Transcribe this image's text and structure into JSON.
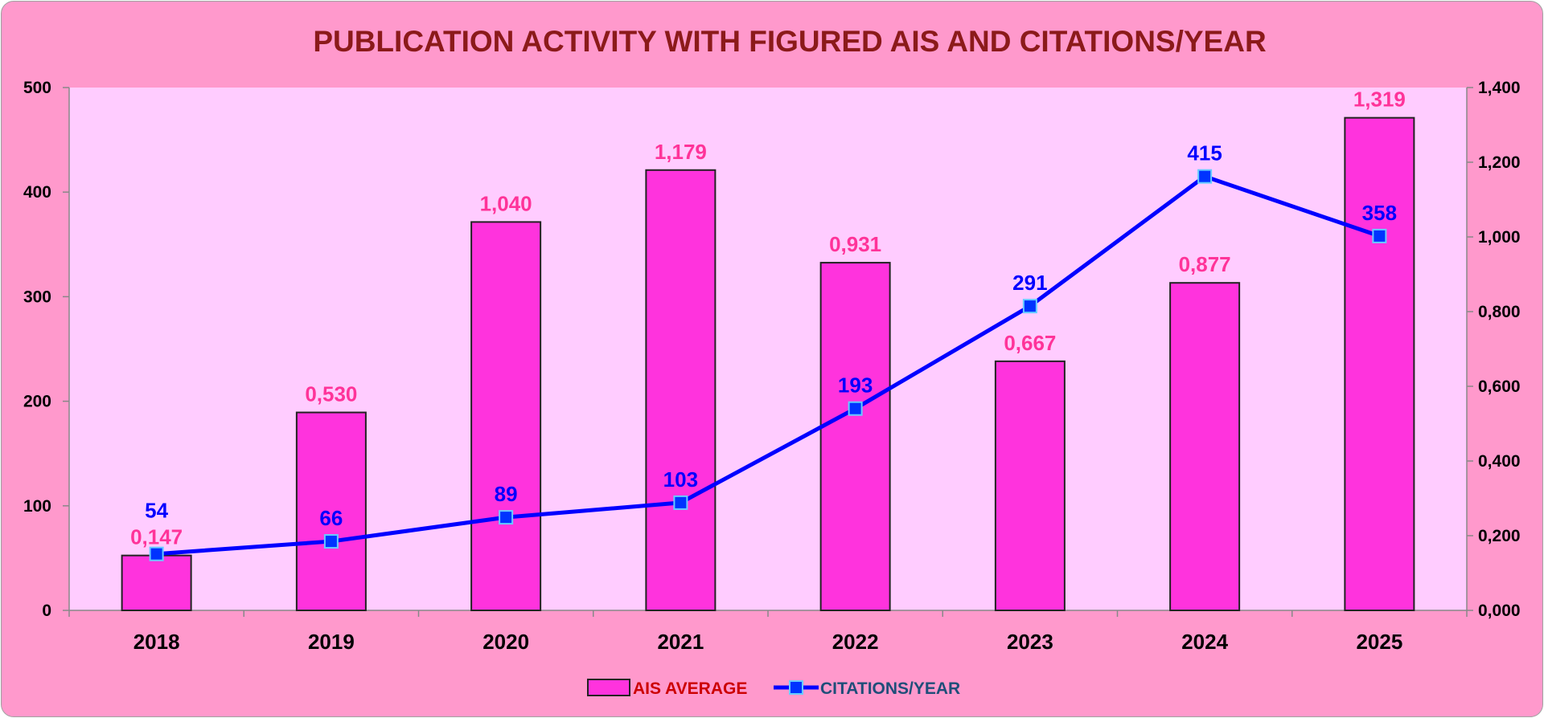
{
  "chart_data": {
    "type": "bar",
    "title": "PUBLICATION ACTIVITY WITH FIGURED AIS AND CITATIONS/YEAR",
    "categories": [
      "2018",
      "2019",
      "2020",
      "2021",
      "2022",
      "2023",
      "2024",
      "2025"
    ],
    "series": [
      {
        "name": "AIS AVERAGE",
        "type": "bar",
        "axis": "right",
        "values": [
          0.147,
          0.53,
          1.04,
          1.179,
          0.931,
          0.667,
          0.877,
          1.319
        ],
        "labels": [
          "0,147",
          "0,530",
          "1,040",
          "1,179",
          "0,931",
          "0,667",
          "0,877",
          "1,319"
        ],
        "color": "#ff33dd",
        "label_color": "#ff3399"
      },
      {
        "name": "CITATIONS/YEAR",
        "type": "line",
        "axis": "left",
        "values": [
          54,
          66,
          89,
          103,
          193,
          291,
          415,
          358
        ],
        "labels": [
          "54",
          "66",
          "89",
          "103",
          "193",
          "291",
          "415",
          "358"
        ],
        "color": "#0000ff",
        "marker_color": "#0033ff",
        "label_color": "#0000ff"
      }
    ],
    "y_left": {
      "range": [
        0,
        500
      ],
      "ticks": [
        0,
        100,
        200,
        300,
        400,
        500
      ],
      "tick_labels": [
        "0",
        "100",
        "200",
        "300",
        "400",
        "500"
      ]
    },
    "y_right": {
      "range": [
        0,
        1.4
      ],
      "ticks": [
        0,
        0.2,
        0.4,
        0.6,
        0.8,
        1.0,
        1.2,
        1.4
      ],
      "tick_labels": [
        "0,000",
        "0,200",
        "0,400",
        "0,600",
        "0,800",
        "1,000",
        "1,200",
        "1,400"
      ]
    },
    "grid": false,
    "legend": "bottom-center",
    "colors": {
      "chart_background": "#ff99cc",
      "plot_background": "#ffccff",
      "title_color": "#8b1a1a",
      "ais_legend_text": "#cc0000",
      "citations_legend_text": "#1f4e79"
    }
  }
}
